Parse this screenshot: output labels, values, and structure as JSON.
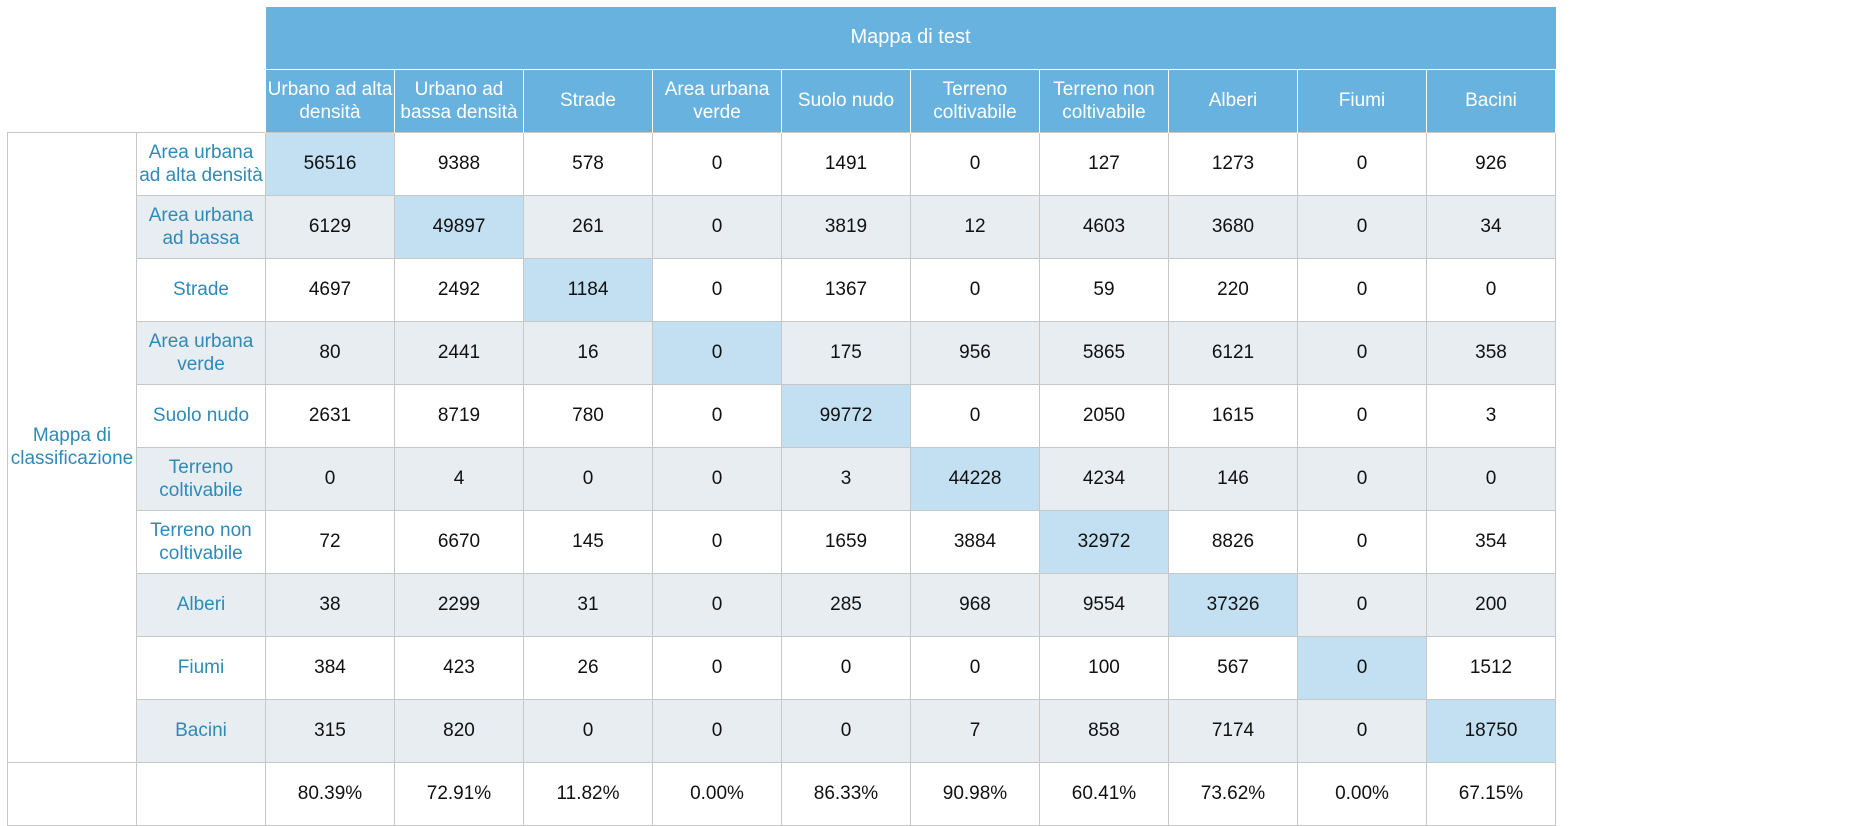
{
  "table": {
    "header_title": "Mappa di test",
    "row_group_label": "Mappa di\nclassificazione",
    "columns": [
      "Urbano ad alta densità",
      "Urbano ad bassa densità",
      "Strade",
      "Area urbana verde",
      "Suolo nudo",
      "Terreno coltivabile",
      "Terreno non coltivabile",
      "Alberi",
      "Fiumi",
      "Bacini"
    ],
    "rows": [
      {
        "label": "Area urbana ad alta densità",
        "values": [
          "56516",
          "9388",
          "578",
          "0",
          "1491",
          "0",
          "127",
          "1273",
          "0",
          "926"
        ]
      },
      {
        "label": "Area urbana ad bassa",
        "values": [
          "6129",
          "49897",
          "261",
          "0",
          "3819",
          "12",
          "4603",
          "3680",
          "0",
          "34"
        ]
      },
      {
        "label": "Strade",
        "values": [
          "4697",
          "2492",
          "1184",
          "0",
          "1367",
          "0",
          "59",
          "220",
          "0",
          "0"
        ]
      },
      {
        "label": "Area urbana verde",
        "values": [
          "80",
          "2441",
          "16",
          "0",
          "175",
          "956",
          "5865",
          "6121",
          "0",
          "358"
        ]
      },
      {
        "label": "Suolo nudo",
        "values": [
          "2631",
          "8719",
          "780",
          "0",
          "99772",
          "0",
          "2050",
          "1615",
          "0",
          "3"
        ]
      },
      {
        "label": "Terreno coltivabile",
        "values": [
          "0",
          "4",
          "0",
          "0",
          "3",
          "44228",
          "4234",
          "146",
          "0",
          "0"
        ]
      },
      {
        "label": "Terreno non coltivabile",
        "values": [
          "72",
          "6670",
          "145",
          "0",
          "1659",
          "3884",
          "32972",
          "8826",
          "0",
          "354"
        ]
      },
      {
        "label": "Alberi",
        "values": [
          "38",
          "2299",
          "31",
          "0",
          "285",
          "968",
          "9554",
          "37326",
          "0",
          "200"
        ]
      },
      {
        "label": "Fiumi",
        "values": [
          "384",
          "423",
          "26",
          "0",
          "0",
          "0",
          "100",
          "567",
          "0",
          "1512"
        ]
      },
      {
        "label": "Bacini",
        "values": [
          "315",
          "820",
          "0",
          "0",
          "0",
          "7",
          "858",
          "7174",
          "0",
          "18750"
        ]
      }
    ],
    "percentages": [
      "80.39%",
      "72.91%",
      "11.82%",
      "0.00%",
      "86.33%",
      "90.98%",
      "60.41%",
      "73.62%",
      "0.00%",
      "67.15%"
    ]
  },
  "colors": {
    "header_bg": "#67b2de",
    "diagonal_bg": "#c2e0f1",
    "alt_row_bg": "#e8edf1",
    "label_text": "#2e8ab7"
  }
}
